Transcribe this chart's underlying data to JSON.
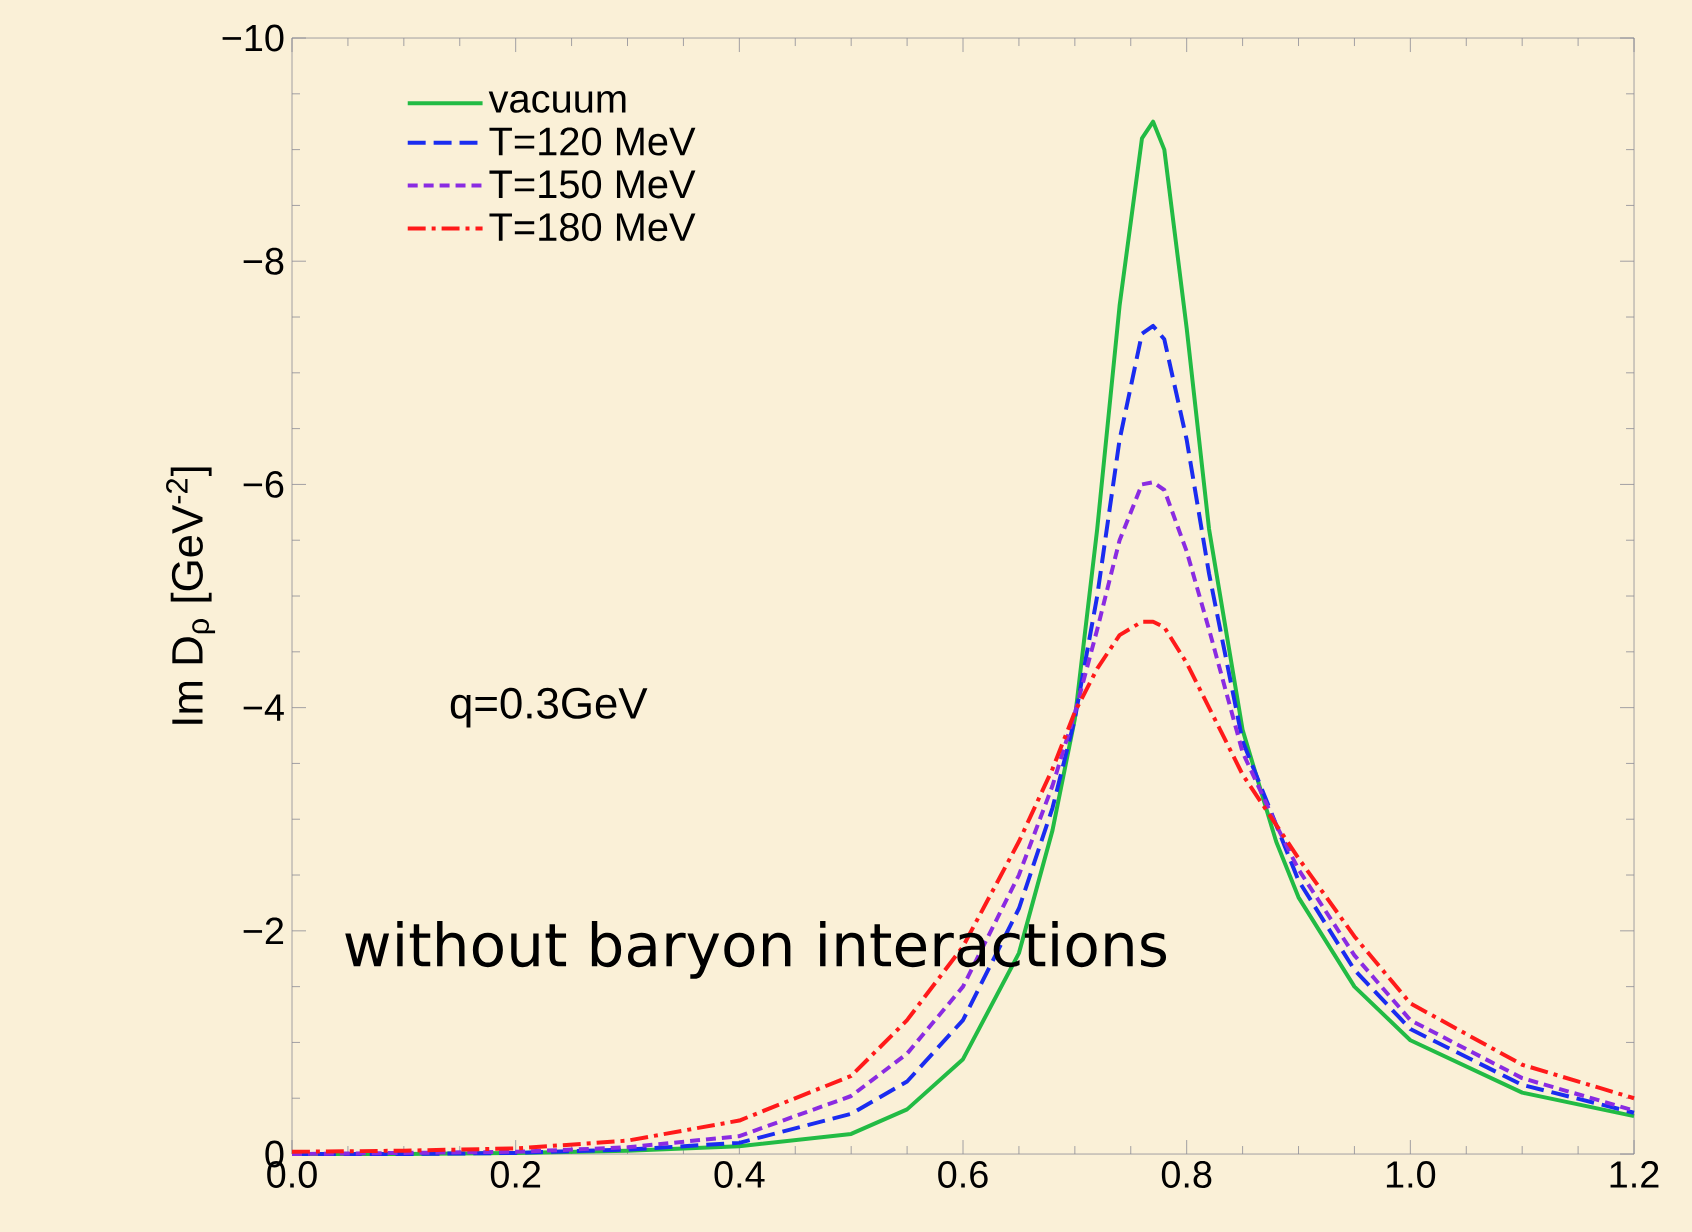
{
  "chart_data": {
    "type": "line",
    "ylabel": "Im D$_{ρ}$  [GeV$^{-2}$]",
    "x": [
      0,
      0.1,
      0.2,
      0.3,
      0.4,
      0.5,
      0.55,
      0.6,
      0.65,
      0.68,
      0.7,
      0.72,
      0.74,
      0.76,
      0.77,
      0.78,
      0.8,
      0.82,
      0.85,
      0.88,
      0.9,
      0.95,
      1.0,
      1.1,
      1.2
    ],
    "series": [
      {
        "name": "vacuum",
        "color": "#22bb44",
        "line_style": "solid",
        "values": [
          0,
          0,
          -0.01,
          -0.03,
          -0.07,
          -0.18,
          -0.4,
          -0.85,
          -1.8,
          -2.9,
          -3.9,
          -5.6,
          -7.6,
          -9.1,
          -9.25,
          -9.0,
          -7.4,
          -5.6,
          -3.8,
          -2.8,
          -2.3,
          -1.5,
          -1.02,
          -0.55,
          -0.34
        ]
      },
      {
        "name": "T=120 MeV",
        "color": "#1a2cf0",
        "line_style": "dashed",
        "values": [
          0,
          0,
          -0.01,
          -0.04,
          -0.1,
          -0.36,
          -0.65,
          -1.2,
          -2.2,
          -3.1,
          -3.9,
          -5.0,
          -6.4,
          -7.35,
          -7.42,
          -7.3,
          -6.4,
          -5.2,
          -3.7,
          -2.95,
          -2.45,
          -1.65,
          -1.12,
          -0.62,
          -0.37
        ]
      },
      {
        "name": "T=150 MeV",
        "color": "#8a2be2",
        "line_style": "dotted",
        "values": [
          0,
          -0.01,
          -0.02,
          -0.06,
          -0.16,
          -0.52,
          -0.9,
          -1.5,
          -2.5,
          -3.3,
          -3.95,
          -4.7,
          -5.5,
          -6.0,
          -6.02,
          -5.95,
          -5.4,
          -4.7,
          -3.6,
          -2.95,
          -2.55,
          -1.78,
          -1.2,
          -0.68,
          -0.39
        ]
      },
      {
        "name": "T=180 MeV",
        "color": "#ff1a1a",
        "line_style": "dashdot",
        "values": [
          -0.02,
          -0.03,
          -0.05,
          -0.12,
          -0.3,
          -0.7,
          -1.2,
          -1.86,
          -2.8,
          -3.45,
          -3.96,
          -4.35,
          -4.65,
          -4.77,
          -4.77,
          -4.72,
          -4.4,
          -4.0,
          -3.4,
          -2.95,
          -2.65,
          -1.95,
          -1.35,
          -0.8,
          -0.5
        ]
      }
    ],
    "xlim": [
      0,
      1.2
    ],
    "xticks": [
      {
        "value": 0,
        "label": "0.0"
      },
      {
        "value": 0.2,
        "label": "0.2"
      },
      {
        "value": 0.4,
        "label": "0.4"
      },
      {
        "value": 0.6,
        "label": "0.6"
      },
      {
        "value": 0.8,
        "label": "0.8"
      },
      {
        "value": 1.0,
        "label": "1.0"
      },
      {
        "value": 1.2,
        "label": "1.2"
      }
    ],
    "ylim": [
      0,
      -10
    ],
    "yticks": [
      {
        "value": 0,
        "label": "0"
      },
      {
        "value": -2,
        "label": "−2"
      },
      {
        "value": -4,
        "label": "−4"
      },
      {
        "value": -6,
        "label": "−6"
      },
      {
        "value": -8,
        "label": "−8"
      },
      {
        "value": -10,
        "label": "−10"
      }
    ],
    "annotations": [
      "q=0.3GeV",
      "without baryon interactions"
    ],
    "legend": "top left",
    "grid": false
  }
}
